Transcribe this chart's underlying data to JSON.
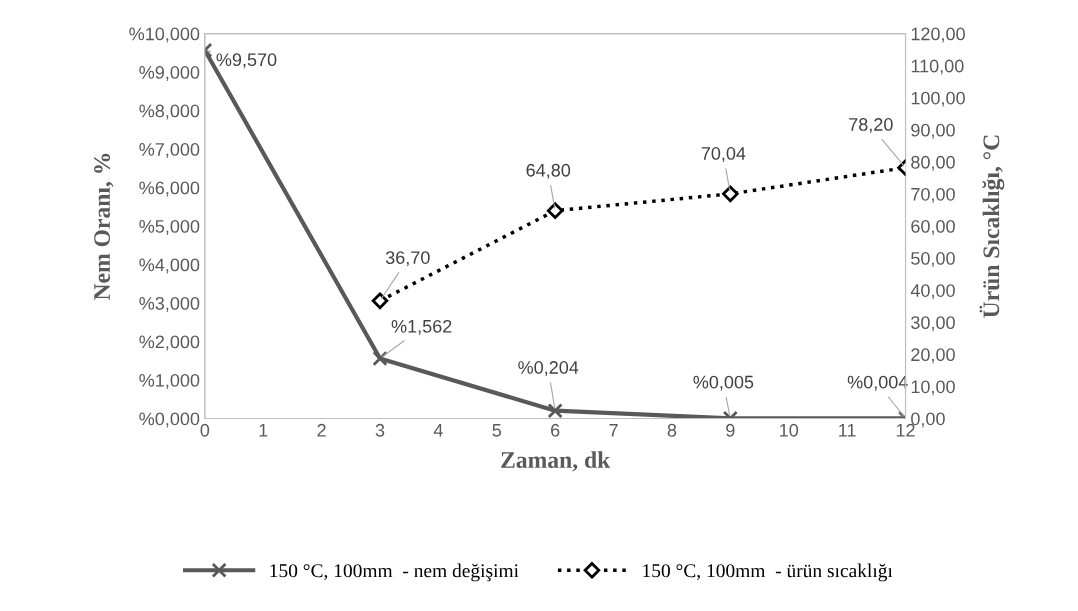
{
  "chart_data": {
    "type": "line",
    "xlabel": "Zaman, dk",
    "ylabel": "Nem Oranı, %",
    "y2label": "Ürün Sıcaklığı, °C",
    "xlim": [
      0,
      12
    ],
    "xticks": [
      0,
      1,
      2,
      3,
      4,
      5,
      6,
      7,
      8,
      9,
      10,
      11,
      12
    ],
    "ylim": [
      0,
      10
    ],
    "yticks": [
      {
        "value": 0,
        "label": "%0,000"
      },
      {
        "value": 1,
        "label": "%1,000"
      },
      {
        "value": 2,
        "label": "%2,000"
      },
      {
        "value": 3,
        "label": "%3,000"
      },
      {
        "value": 4,
        "label": "%4,000"
      },
      {
        "value": 5,
        "label": "%5,000"
      },
      {
        "value": 6,
        "label": "%6,000"
      },
      {
        "value": 7,
        "label": "%7,000"
      },
      {
        "value": 8,
        "label": "%8,000"
      },
      {
        "value": 9,
        "label": "%9,000"
      },
      {
        "value": 10,
        "label": "%10,000"
      }
    ],
    "y2lim": [
      0,
      120
    ],
    "y2ticks": [
      {
        "value": 0,
        "label": "0,00"
      },
      {
        "value": 10,
        "label": "10,00"
      },
      {
        "value": 20,
        "label": "20,00"
      },
      {
        "value": 30,
        "label": "30,00"
      },
      {
        "value": 40,
        "label": "40,00"
      },
      {
        "value": 50,
        "label": "50,00"
      },
      {
        "value": 60,
        "label": "60,00"
      },
      {
        "value": 70,
        "label": "70,00"
      },
      {
        "value": 80,
        "label": "80,00"
      },
      {
        "value": 90,
        "label": "90,00"
      },
      {
        "value": 100,
        "label": "100,00"
      },
      {
        "value": 110,
        "label": "110,00"
      },
      {
        "value": 120,
        "label": "120,00"
      }
    ],
    "grid": false,
    "legend": "bottom",
    "series": [
      {
        "name": "150 °C, 100mm  - nem değişimi",
        "color": "#595959",
        "x": [
          0,
          3,
          6,
          9,
          12
        ],
        "values": [
          9.57,
          1.562,
          0.204,
          0.005,
          0.004
        ],
        "marker": "cross",
        "line_style": "solid",
        "value_labels": [
          "%9,570",
          "%1,562",
          "%0,204",
          "%0,005",
          "%0,004"
        ]
      },
      {
        "name": "150 °C, 100mm  - ürün sıcaklığı",
        "color": "#000000",
        "x": [
          3,
          6,
          9,
          12
        ],
        "values": [
          36.7,
          64.8,
          70.04,
          78.2
        ],
        "axis": "y2",
        "marker": "diamond",
        "line_style": "dotted",
        "value_labels": [
          "36,70",
          "64,80",
          "70,04",
          "78,20"
        ]
      }
    ]
  }
}
